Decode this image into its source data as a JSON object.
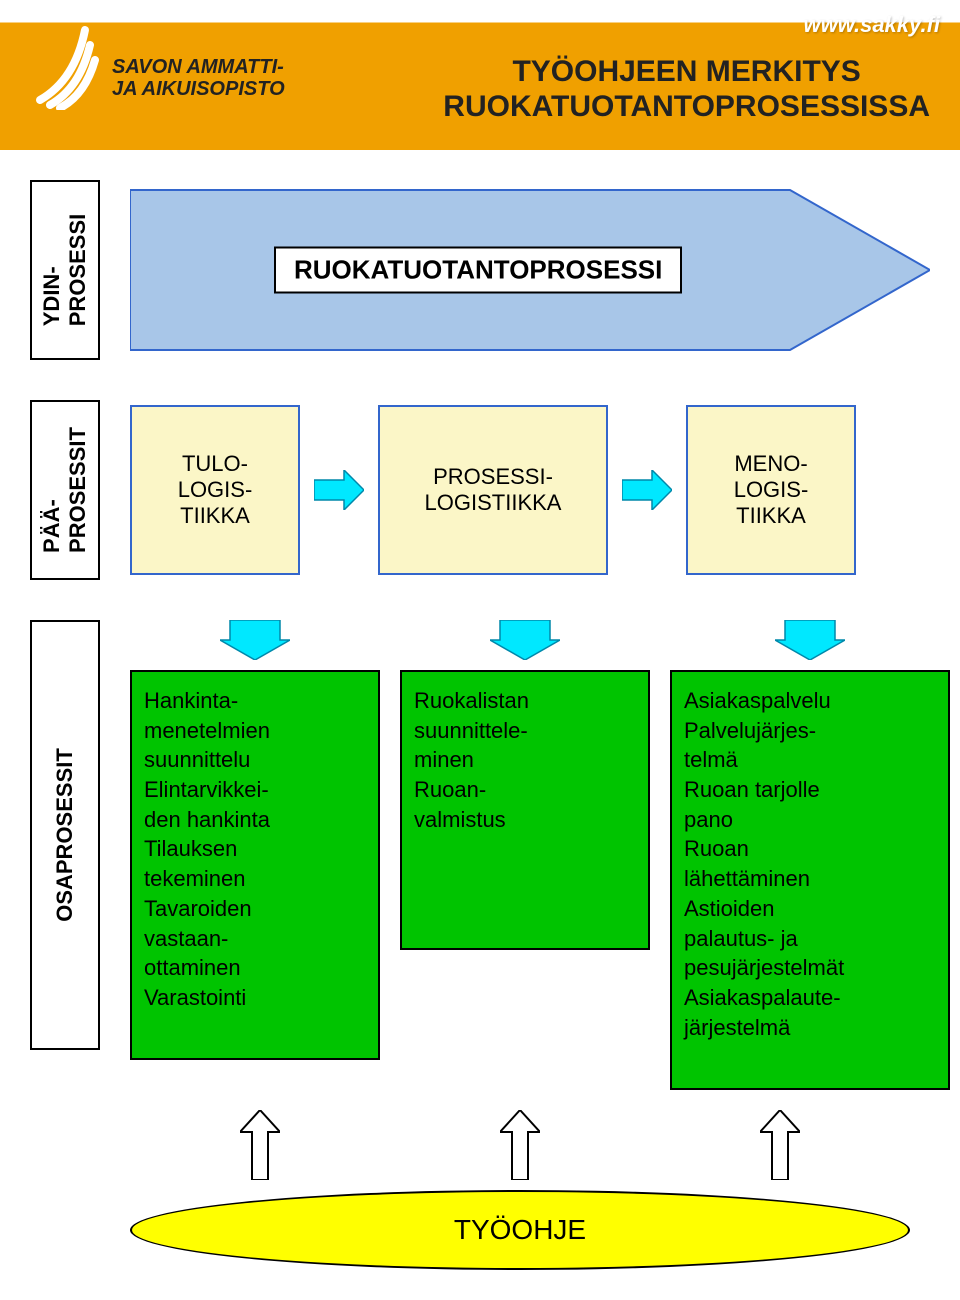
{
  "header": {
    "org_line1": "SAVON AMMATTI-",
    "org_line2": "JA AIKUISOPISTO",
    "url": "www.sakky.fi",
    "title_line1": "TYÖOHJEEN MERKITYS",
    "title_line2": "RUOKATUOTANTOPROSESSISSA",
    "bg_top": "#ffffff",
    "bg_band": "#f0a000",
    "logo_color": "#ffffff"
  },
  "side_labels": {
    "ydin": "YDIN-\nPROSESSI",
    "paa": "PÄÄ-\nPROSESSIT",
    "osa": "OSAPROSESSIT"
  },
  "ydin": {
    "label": "RUOKATUOTANTOPROSESSI",
    "arrow_fill": "#a8c6e8",
    "arrow_stroke": "#3366cc"
  },
  "paa": {
    "boxes": [
      {
        "text": "TULO-\nLOGIS-\nTIIKKA"
      },
      {
        "text": "PROSESSI-\nLOGISTIIKKA"
      },
      {
        "text": "MENO-\nLOGIS-\nTIIKKA"
      }
    ],
    "box_fill": "#fbf6c7",
    "box_stroke": "#3366cc",
    "arrow_fill": "#00e8ff",
    "arrow_stroke": "#0088aa"
  },
  "osa": {
    "down_arrow_fill": "#00e8ff",
    "down_arrow_stroke": "#0088aa",
    "box_fill": "#00c400",
    "box_stroke": "#000000",
    "cols": [
      {
        "text": "Hankinta-\nmenetelmien\nsuunnittelu\nElintarvikkei-\nden hankinta\nTilauksen\ntekeminen\nTavaroiden\nvastaan-\nottaminen\nVarastointi"
      },
      {
        "text": "Ruokalistan\nsuunnittele-\nminen\nRuoan-\nvalmistus"
      },
      {
        "text": "Asiakaspalvelu\nPalvelujärjes-\ntelmä\nRuoan tarjolle\npano\nRuoan\nlähettäminen\nAstioiden\npalautus- ja\npesujärjestelmät\nAsiakaspalaute-\njärjestelmä"
      }
    ]
  },
  "up_arrow": {
    "fill": "#ffffff",
    "stroke": "#000000"
  },
  "ellipse": {
    "label": "TYÖOHJE",
    "fill": "#ffff00",
    "stroke": "#000000"
  }
}
